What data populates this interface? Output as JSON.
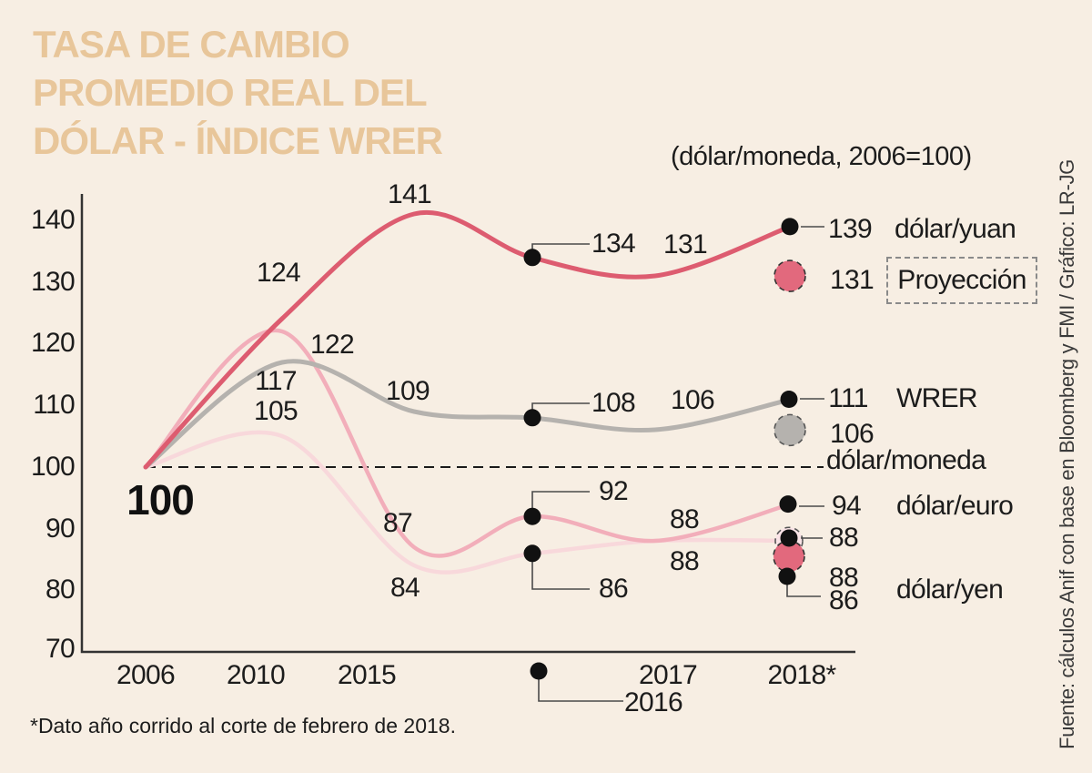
{
  "background": "#f7eee3",
  "header": {
    "title_lines": [
      "TASA DE CAMBIO",
      "PROMEDIO REAL DEL",
      "DÓLAR - ÍNDICE WRER"
    ],
    "title_color": "#e8c69a",
    "subtitle": "(dólar/moneda, 2006=100)"
  },
  "chart_data": {
    "type": "line",
    "categories": [
      "2006",
      "2010",
      "2015",
      "2016",
      "2017",
      "2018*"
    ],
    "ylim": [
      70,
      140
    ],
    "yticks": [
      140,
      130,
      120,
      110,
      100,
      90,
      80,
      70
    ],
    "grid": false,
    "baseline_value": 100,
    "baseline_label": "100",
    "legend_label": "Proyección",
    "series": [
      {
        "name": "dólar/yuan",
        "color": "#dd5c70",
        "values": [
          100,
          124,
          141,
          134,
          131,
          139
        ],
        "projection": 131,
        "projection_fill": "#e2697d"
      },
      {
        "name": "WRER dólar/moneda",
        "label_top": "WRER",
        "label_bottom": "dólar/moneda",
        "color": "#b5b2ae",
        "values": [
          100,
          117,
          109,
          108,
          106,
          111
        ],
        "projection": 106,
        "projection_fill": "#b5b2ae"
      },
      {
        "name": "dólar/euro",
        "color": "#f2aeba",
        "values": [
          100,
          122,
          87,
          92,
          88,
          94
        ],
        "projection": 88,
        "projection_fill": "#fae4e7"
      },
      {
        "name": "dólar/yen",
        "color": "#f8d8db",
        "values": [
          100,
          105,
          84,
          86,
          88,
          88
        ],
        "projection": 86,
        "projection_fill": "#e2697d"
      }
    ]
  },
  "footnote": "*Dato año corrido al corte de febrero de 2018.",
  "source": "Fuente: cálculos Anif con base en Bloomberg y FMI / Gráfico: LR-JG"
}
